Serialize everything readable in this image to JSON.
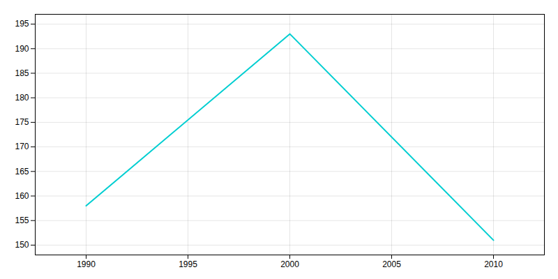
{
  "chart_data": {
    "type": "line",
    "x": [
      1990,
      2000,
      2010
    ],
    "values": [
      158,
      193,
      151
    ],
    "color": "#00CED1",
    "xlim": [
      1987.5,
      2012.5
    ],
    "ylim": [
      148,
      197
    ],
    "xticks": [
      1990,
      1995,
      2000,
      2005,
      2010
    ],
    "yticks": [
      150,
      155,
      160,
      165,
      170,
      175,
      180,
      185,
      190,
      195
    ],
    "grid": true
  }
}
